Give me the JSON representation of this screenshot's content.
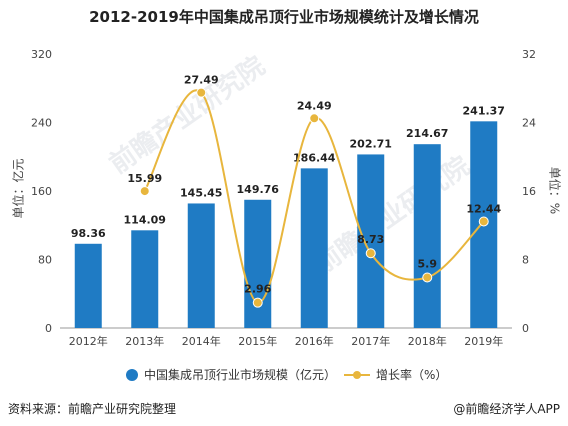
{
  "title": "2012-2019年中国集成吊顶行业市场规模统计及增长情况",
  "watermark_text": "前瞻产业研究院",
  "chart_data": {
    "type": "bar",
    "categories": [
      "2012年",
      "2013年",
      "2014年",
      "2015年",
      "2016年",
      "2017年",
      "2018年",
      "2019年"
    ],
    "series": [
      {
        "name": "中国集成吊顶行业市场规模（亿元）",
        "type": "bar",
        "axis": "left",
        "values": [
          98.36,
          114.09,
          145.45,
          149.76,
          186.44,
          202.71,
          214.67,
          241.37
        ],
        "labels": [
          "98.36",
          "114.09",
          "145.45",
          "149.76",
          "186.44",
          "202.71",
          "214.67",
          "241.37"
        ],
        "color": "#1f7bc4"
      },
      {
        "name": "增长率（%）",
        "type": "line",
        "axis": "right",
        "values": [
          null,
          15.99,
          27.49,
          2.96,
          24.49,
          8.73,
          5.9,
          12.44
        ],
        "labels": [
          "",
          "15.99",
          "27.49",
          "2.96",
          "24.49",
          "8.73",
          "5.9",
          "12.44"
        ],
        "color": "#e8b63d",
        "smooth": true
      }
    ],
    "ylabel_left": "单位：亿元",
    "ylabel_right": "单位：%",
    "ylim_left": [
      0,
      320
    ],
    "yticks_left": [
      "0",
      "80",
      "160",
      "240",
      "320"
    ],
    "ylim_right": [
      0,
      32
    ],
    "yticks_right": [
      "0",
      "8",
      "16",
      "24",
      "32"
    ],
    "grid": false,
    "legend_position": "bottom"
  },
  "footer": {
    "source": "资料来源：前瞻产业研究院整理",
    "brand": "@前瞻经济学人APP"
  }
}
